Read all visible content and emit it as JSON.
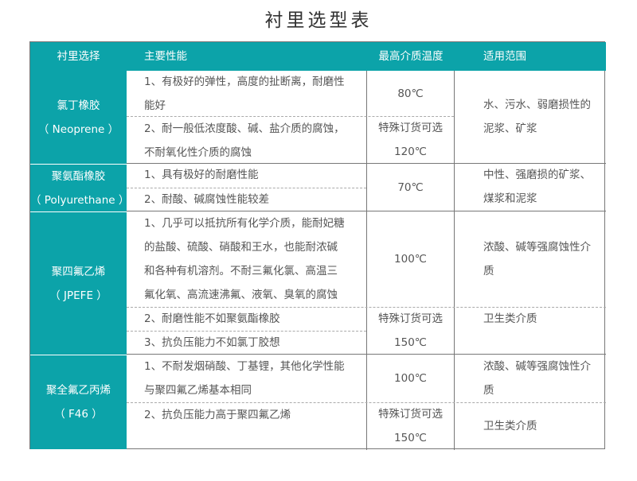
{
  "title": "衬里选型表",
  "headers": [
    "衬里选择",
    "主要性能",
    "最高介质温度",
    "适用范围"
  ],
  "rows": [
    {
      "name": "氯丁橡胶",
      "en": "（ Neoprene ）",
      "p1": [
        "1、有极好的弹性，高度的扯断离，耐磨性",
        "能好"
      ],
      "p2": [
        "2、耐一般低浓度酸、碱、盐介质的腐蚀，",
        "不耐氧化性介质的腐蚀"
      ],
      "t1": "80℃",
      "t2": [
        "特殊订货可选",
        "120℃"
      ],
      "u": [
        "水、污水、弱磨损性的",
        "泥浆、矿浆"
      ]
    },
    {
      "name": "聚氨酯橡胶",
      "en": "（ Polyurethane ）",
      "p1": [
        "1、具有极好的耐磨性能"
      ],
      "p2": [
        "2、耐酸、碱腐蚀性能较差"
      ],
      "t1": "70℃",
      "u": [
        "中性、强磨损的矿浆、",
        "煤浆和泥浆"
      ]
    },
    {
      "name": "聚四氟乙烯",
      "en": "（ JPEFE ）",
      "p1": [
        "1、几乎可以抵抗所有化学介质，能耐妃糖",
        "的盐酸、硫酸、硝酸和王水，也能耐浓碱",
        "和各种有机溶剂。不耐三氟化氯、高温三",
        "氟化氧、高流速沸氟、液氧、臭氧的腐蚀"
      ],
      "p2": [
        "2、耐磨性能不如聚氨酯橡胶"
      ],
      "p3": [
        "3、抗负压能力不如氯丁胶想"
      ],
      "t1": "100℃",
      "t2": [
        "特殊订货可选",
        "150℃"
      ],
      "u": [
        "浓酸、碱等强腐蚀性介",
        "质"
      ],
      "u2": [
        "卫生类介质"
      ]
    },
    {
      "name": "聚全氟乙丙烯",
      "en": "（ F46 ）",
      "p1": [
        "1、不耐发烟硝酸、丁基锂，其他化学性能",
        "与聚四氟乙烯基本相同"
      ],
      "p2": [
        "2、抗负压能力高于聚四氟乙烯"
      ],
      "t1": "100℃",
      "t2": [
        "特殊订货可选",
        "150℃"
      ],
      "u": [
        "浓酸、碱等强腐蚀性介",
        "质"
      ],
      "u2": [
        "卫生类介质"
      ]
    }
  ],
  "colors": {
    "accent": "#0ca3a9"
  }
}
